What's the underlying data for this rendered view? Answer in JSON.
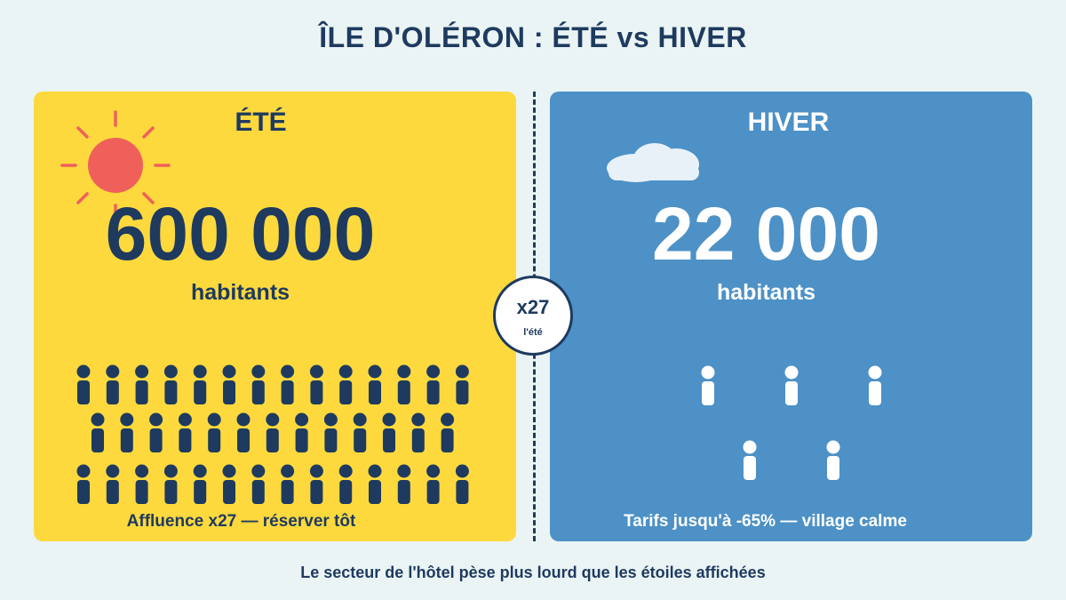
{
  "title": "ÎLE D'OLÉRON : ÉTÉ vs HIVER",
  "summer": {
    "label": "ÉTÉ",
    "population": "600 000",
    "unit": "habitants",
    "caption": "Affluence x27 — réserver tôt",
    "background_color": "#fdd93e",
    "figure_color": "#1e3a5f",
    "icon": "sun-icon"
  },
  "winter": {
    "label": "HIVER",
    "population": "22 000",
    "unit": "habitants",
    "caption": "Tarifs jusqu'à -65% — village calme",
    "background_color": "#4d91c6",
    "figure_color": "#ffffff",
    "icon": "cloud-icon"
  },
  "ratio": {
    "value": "x27",
    "note": "l'été"
  },
  "footer": "Le secteur de l'hôtel pèse plus lourd que les étoiles affichées",
  "colors": {
    "background": "#eaf4f4",
    "navy": "#1e3a5f",
    "sun": "#f0605a"
  }
}
